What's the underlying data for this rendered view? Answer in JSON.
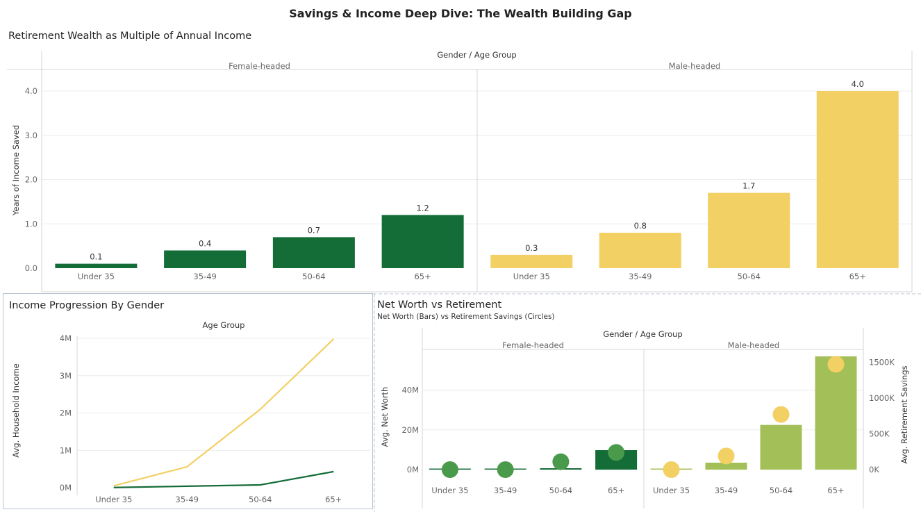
{
  "dashboard": {
    "title": "Savings & Income Deep Dive: The Wealth Building Gap"
  },
  "panels": {
    "retirement_multiple": {
      "title": "Retirement Wealth as Multiple of Annual Income",
      "header_title": "Gender / Age Group",
      "ylabel": "Years of Income Saved"
    },
    "income_progression": {
      "title": "Income Progression By Gender",
      "header_title": "Age Group",
      "ylabel": "Avg. Household Income"
    },
    "net_worth": {
      "title": "Net Worth vs Retirement",
      "subtitle": "Net Worth (Bars) vs Retirement Savings (Circles)",
      "header_title": "Gender / Age Group",
      "ylabel_left": "Avg. Net Worth",
      "ylabel_right": "Avg. Retirement Savings"
    }
  },
  "colors": {
    "female_dark": "#146c37",
    "female_light": "#4a9a4c",
    "male_yellow": "#f2d063",
    "male_green": "#a3bf58",
    "grid": "#ececec",
    "divider": "#d4d4d4"
  },
  "chart_data": [
    {
      "id": "retirement_multiple",
      "type": "bar",
      "groups": [
        "Female-headed",
        "Male-headed"
      ],
      "categories": [
        "Under 35",
        "35-49",
        "50-64",
        "65+"
      ],
      "series": [
        {
          "group": "Female-headed",
          "values": [
            0.1,
            0.4,
            0.7,
            1.2
          ],
          "labels": [
            "0.1",
            "0.4",
            "0.7",
            "1.2"
          ]
        },
        {
          "group": "Male-headed",
          "values": [
            0.3,
            0.8,
            1.7,
            4.0
          ],
          "labels": [
            "0.3",
            "0.8",
            "1.7",
            "4.0"
          ]
        }
      ],
      "ylim": [
        0,
        4.0
      ],
      "yticks": [
        0,
        1,
        2,
        3,
        4
      ],
      "ytick_labels": [
        "0.0",
        "1.0",
        "2.0",
        "3.0",
        "4.0"
      ]
    },
    {
      "id": "income_progression",
      "type": "line",
      "categories": [
        "Under 35",
        "35-49",
        "50-64",
        "65+"
      ],
      "series": [
        {
          "group": "Male-headed",
          "values": [
            50000,
            560000,
            2100000,
            3980000
          ]
        },
        {
          "group": "Female-headed",
          "values": [
            5000,
            40000,
            75000,
            430000
          ]
        }
      ],
      "ylim": [
        0,
        4000000
      ],
      "yticks": [
        0,
        1000000,
        2000000,
        3000000,
        4000000
      ],
      "ytick_labels": [
        "0M",
        "1M",
        "2M",
        "3M",
        "4M"
      ]
    },
    {
      "id": "net_worth",
      "type": "bar",
      "groups": [
        "Female-headed",
        "Male-headed"
      ],
      "categories": [
        "Under 35",
        "35-49",
        "50-64",
        "65+"
      ],
      "bars": [
        {
          "group": "Female-headed",
          "values": [
            150000,
            350000,
            700000,
            9800000
          ]
        },
        {
          "group": "Male-headed",
          "values": [
            300000,
            3500000,
            22500000,
            57000000
          ]
        }
      ],
      "circles": [
        {
          "group": "Female-headed",
          "values": [
            0,
            0,
            110000,
            240000
          ]
        },
        {
          "group": "Male-headed",
          "values": [
            0,
            190000,
            770000,
            1470000
          ]
        }
      ],
      "ylim_left": [
        0,
        57000000
      ],
      "yticks_left": [
        0,
        20000000,
        40000000
      ],
      "ytick_labels_left": [
        "0M",
        "20M",
        "40M"
      ],
      "ylim_right": [
        0,
        1580000
      ],
      "yticks_right": [
        0,
        500000,
        1000000,
        1500000
      ],
      "ytick_labels_right": [
        "0K",
        "500K",
        "1000K",
        "1500K"
      ]
    }
  ]
}
